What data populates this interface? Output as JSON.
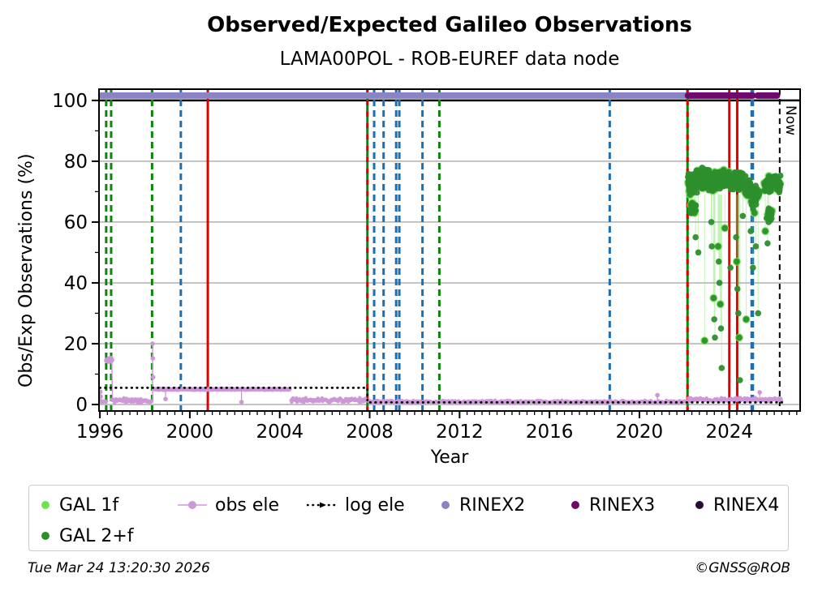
{
  "page": {
    "footer_left": "Tue Mar 24 13:20:30 2026",
    "footer_right": "©GNSS@ROB"
  },
  "chart_data": {
    "type": "scatter",
    "title": "Observed/Expected Galileo Observations",
    "subtitle": "LAMA00POL - ROB-EUREF data node",
    "xlabel": "Year",
    "ylabel": "Obs/Exp Observations (%)",
    "now_label": "Now",
    "xlim": [
      1995.96,
      2027.15
    ],
    "ylim": [
      -2.13,
      103.7
    ],
    "xticks": [
      1996,
      2000,
      2004,
      2008,
      2012,
      2016,
      2020,
      2024
    ],
    "yticks": [
      0,
      20,
      40,
      60,
      80,
      100
    ],
    "x_minor_step": 0.33333,
    "y_minor_step": 10,
    "grid": {
      "horizontal": true,
      "color": "#b0b0b0"
    },
    "reference_line": {
      "y": 100,
      "color": "#000000"
    },
    "colors": {
      "gal1f": "#6fe24f",
      "gal2f": "#2c8f2c",
      "obs_ele": "#cd97d8",
      "log_ele": "#000000",
      "rinex2": "#8a84c6",
      "rinex3": "#6e096e",
      "rinex4": "#2a0b33",
      "green_line": "#0a860a",
      "blue_line": "#1b6fb5",
      "red_line": "#e00000",
      "black_line": "#000000"
    },
    "rinex_bands": {
      "y": 101.6,
      "segments": [
        {
          "name": "RINEX2",
          "from": 1996.06,
          "to": 2022.12
        },
        {
          "name": "RINEX3",
          "from": 2022.16,
          "to": 2025.04
        },
        {
          "name": "RINEX3",
          "from": 2025.26,
          "to": 2026.12
        }
      ]
    },
    "event_lines": [
      {
        "x": 1996.28,
        "style": "dashed",
        "color": "green"
      },
      {
        "x": 1996.5,
        "style": "dashed",
        "color": "green"
      },
      {
        "x": 1998.32,
        "style": "dashed",
        "color": "green"
      },
      {
        "x": 1999.6,
        "style": "dashed",
        "color": "blue"
      },
      {
        "x": 2000.8,
        "style": "solid",
        "color": "red"
      },
      {
        "x": 2007.9,
        "style": "solid",
        "color": "green",
        "overlay": "red-dashed"
      },
      {
        "x": 2008.2,
        "style": "dashed",
        "color": "blue"
      },
      {
        "x": 2008.62,
        "style": "dashed",
        "color": "blue"
      },
      {
        "x": 2009.18,
        "style": "dashed",
        "color": "blue"
      },
      {
        "x": 2009.32,
        "style": "dashed",
        "color": "blue"
      },
      {
        "x": 2010.35,
        "style": "dashed",
        "color": "blue"
      },
      {
        "x": 2011.1,
        "style": "dashed",
        "color": "green"
      },
      {
        "x": 2018.68,
        "style": "dashed",
        "color": "blue"
      },
      {
        "x": 2022.14,
        "style": "solid",
        "color": "green",
        "overlay": "red-dashed"
      },
      {
        "x": 2024.0,
        "style": "solid",
        "color": "red"
      },
      {
        "x": 2024.35,
        "style": "solid",
        "color": "red"
      },
      {
        "x": 2025.02,
        "style": "dashed",
        "color": "blue",
        "width": 4.5
      },
      {
        "x": 2026.24,
        "style": "dashed",
        "color": "black",
        "name": "now"
      }
    ],
    "log_ele": {
      "points": [
        [
          1996.0,
          5.5
        ],
        [
          2007.9,
          5.5
        ],
        [
          2007.9,
          0.7
        ],
        [
          2026.35,
          0.7
        ]
      ]
    },
    "obs_ele": {
      "segments": [
        {
          "kind": "spike",
          "x": 1996.02,
          "values": [
            4.2,
            2.6,
            0.9
          ]
        },
        {
          "kind": "band",
          "from": 1996.05,
          "to": 1996.3,
          "center": 0.9,
          "spread": 0.6
        },
        {
          "kind": "blob",
          "from": 1996.3,
          "to": 1996.53,
          "center": 14.8,
          "spread": 0.7,
          "drop_to": 1.5
        },
        {
          "kind": "band",
          "from": 1996.53,
          "to": 1998.3,
          "center": 1.3,
          "spread": 1.0
        },
        {
          "kind": "spike",
          "x": 1998.34,
          "values": [
            20.0,
            15.2,
            9.0
          ]
        },
        {
          "kind": "plateau",
          "from": 1998.4,
          "to": 2004.45,
          "center": 5.0,
          "spread": 0.22,
          "dips": [
            [
              1998.92,
              1.8
            ],
            [
              2002.3,
              0.8
            ]
          ]
        },
        {
          "kind": "band",
          "from": 2004.5,
          "to": 2007.95,
          "center": 1.4,
          "spread": 0.9
        },
        {
          "kind": "band",
          "from": 2008.0,
          "to": 2022.1,
          "center": 0.9,
          "spread": 0.5,
          "spikes": [
            [
              2020.8,
              3.1
            ]
          ]
        },
        {
          "kind": "band",
          "from": 2022.15,
          "to": 2026.33,
          "center": 1.6,
          "spread": 0.8,
          "spikes": [
            [
              2025.35,
              4.0
            ]
          ]
        }
      ]
    },
    "gal": {
      "clusters": [
        {
          "from": 2022.16,
          "to": 2022.6,
          "center": 73.0,
          "spread": 4.5,
          "n": 70
        },
        {
          "from": 2022.28,
          "to": 2022.55,
          "center": 64.5,
          "spread": 3.0,
          "n": 15
        },
        {
          "from": 2022.6,
          "to": 2023.4,
          "center": 74.0,
          "spread": 4.0,
          "n": 90
        },
        {
          "from": 2023.4,
          "to": 2024.0,
          "center": 73.5,
          "spread": 4.2,
          "n": 70
        },
        {
          "from": 2024.0,
          "to": 2024.6,
          "center": 74.0,
          "spread": 4.0,
          "n": 60
        },
        {
          "from": 2024.6,
          "to": 2024.95,
          "center": 71.5,
          "spread": 4.0,
          "n": 40
        },
        {
          "from": 2024.98,
          "to": 2025.35,
          "center": 68.0,
          "spread": 4.5,
          "n": 25
        },
        {
          "from": 2025.55,
          "to": 2026.32,
          "center": 72.5,
          "spread": 3.2,
          "n": 70
        },
        {
          "from": 2025.6,
          "to": 2025.9,
          "center": 62.5,
          "spread": 3.5,
          "n": 14
        }
      ],
      "outliers": [
        [
          2022.45,
          63
        ],
        [
          2022.5,
          55
        ],
        [
          2022.62,
          50
        ],
        [
          2022.9,
          21
        ],
        [
          2023.2,
          60
        ],
        [
          2023.22,
          52
        ],
        [
          2023.3,
          35
        ],
        [
          2023.33,
          28
        ],
        [
          2023.36,
          22
        ],
        [
          2023.5,
          52
        ],
        [
          2023.53,
          47
        ],
        [
          2023.56,
          40
        ],
        [
          2023.6,
          33
        ],
        [
          2023.63,
          25
        ],
        [
          2023.66,
          12
        ],
        [
          2023.8,
          58
        ],
        [
          2024.05,
          45
        ],
        [
          2024.3,
          55
        ],
        [
          2024.33,
          47
        ],
        [
          2024.36,
          38
        ],
        [
          2024.4,
          30
        ],
        [
          2024.44,
          22
        ],
        [
          2024.47,
          8
        ],
        [
          2024.6,
          62
        ],
        [
          2024.75,
          28
        ],
        [
          2024.95,
          57
        ],
        [
          2025.05,
          45
        ],
        [
          2025.12,
          63
        ],
        [
          2025.18,
          52
        ],
        [
          2025.28,
          30
        ],
        [
          2025.6,
          57
        ],
        [
          2025.7,
          53
        ],
        [
          2025.75,
          60
        ]
      ]
    },
    "legend": [
      {
        "label": "GAL 1f",
        "marker": "dot",
        "color_key": "gal1f",
        "row": 0,
        "col": 0
      },
      {
        "label": "obs ele",
        "marker": "line-dot",
        "color_key": "obs_ele",
        "row": 0,
        "col": 1
      },
      {
        "label": "log ele",
        "marker": "dotted-line",
        "color_key": "log_ele",
        "row": 0,
        "col": 2
      },
      {
        "label": "RINEX2",
        "marker": "dot",
        "color_key": "rinex2",
        "row": 0,
        "col": 3
      },
      {
        "label": "RINEX3",
        "marker": "dot",
        "color_key": "rinex3",
        "row": 0,
        "col": 4
      },
      {
        "label": "RINEX4",
        "marker": "dot",
        "color_key": "rinex4",
        "row": 0,
        "col": 5
      },
      {
        "label": "GAL 2+f",
        "marker": "dot",
        "color_key": "gal2f",
        "row": 1,
        "col": 0
      }
    ]
  }
}
